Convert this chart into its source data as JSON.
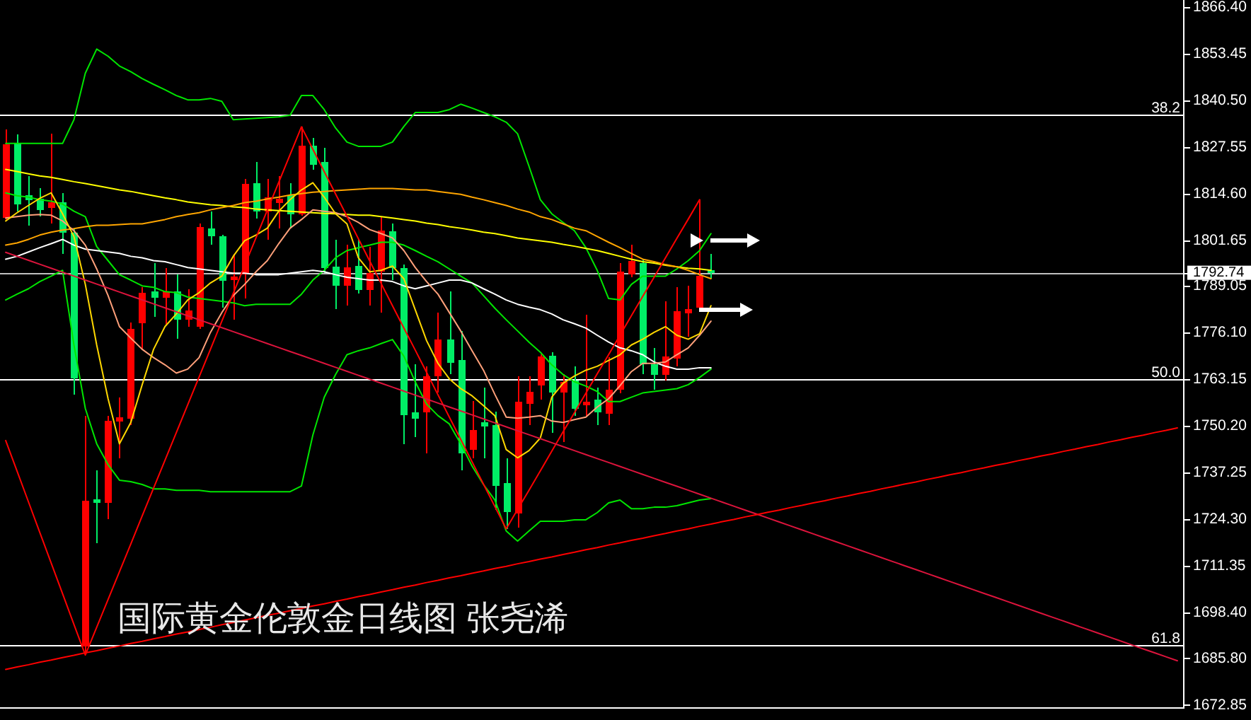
{
  "chart_data": {
    "type": "candlestick",
    "title": "国际黄金伦敦金日线图 张尧浠",
    "categories": [
      null,
      null,
      null,
      null,
      null,
      null,
      null,
      null,
      null,
      null,
      null,
      null,
      null,
      null,
      null,
      null,
      null,
      null,
      null,
      null,
      null,
      null,
      null,
      null,
      null,
      null,
      null,
      null,
      null,
      null,
      null,
      null,
      null,
      null,
      null,
      null,
      null,
      null,
      null,
      null,
      null,
      null,
      null,
      null,
      null,
      null,
      null,
      null,
      null,
      null,
      null,
      null,
      null,
      null,
      null,
      null,
      null,
      null,
      null,
      null,
      null,
      null,
      null,
      null,
      null,
      null,
      null,
      null,
      null,
      null,
      null,
      null,
      null,
      null,
      null,
      null,
      null,
      null,
      null,
      null,
      null,
      null,
      null,
      null,
      null,
      null,
      null,
      null,
      null,
      null,
      null,
      null,
      null,
      null,
      null,
      null,
      null,
      null,
      null,
      null,
      null,
      null,
      null,
      null
    ],
    "ohlc": [
      [
        1808.0,
        1832.5,
        1807.1,
        1828.3
      ],
      [
        1828.6,
        1831.2,
        1809.7,
        1811.7
      ],
      [
        1814.2,
        1819.5,
        1805.8,
        1812.9
      ],
      [
        1813.3,
        1816.2,
        1808.4,
        1810.1
      ],
      [
        1810.7,
        1831.3,
        1806.4,
        1812.3
      ],
      [
        1812.3,
        1814.9,
        1798.0,
        1803.8
      ],
      [
        1803.8,
        1805.1,
        1758.9,
        1763.4
      ],
      [
        1689.1,
        1753.0,
        1686.7,
        1729.5
      ],
      [
        1729.9,
        1738.0,
        1717.8,
        1728.9
      ],
      [
        1728.9,
        1753.0,
        1724.3,
        1751.7
      ],
      [
        1751.4,
        1758.2,
        1741.3,
        1752.6
      ],
      [
        1752.3,
        1779.0,
        1750.4,
        1777.1
      ],
      [
        1778.7,
        1788.8,
        1771.2,
        1787.1
      ],
      [
        1787.5,
        1795.4,
        1780.6,
        1785.8
      ],
      [
        1785.8,
        1794.1,
        1778.4,
        1787.5
      ],
      [
        1787.5,
        1792.3,
        1774.5,
        1779.7
      ],
      [
        1779.7,
        1788.2,
        1777.8,
        1782.3
      ],
      [
        1777.8,
        1806.4,
        1777.1,
        1805.5
      ],
      [
        1805.1,
        1809.7,
        1800.5,
        1802.8
      ],
      [
        1802.8,
        1803.2,
        1783.0,
        1790.5
      ],
      [
        1790.8,
        1798.0,
        1779.7,
        1791.7
      ],
      [
        1792.3,
        1818.8,
        1785.6,
        1817.3
      ],
      [
        1817.5,
        1823.4,
        1807.7,
        1809.7
      ],
      [
        1809.7,
        1818.8,
        1801.9,
        1813.6
      ],
      [
        1812.1,
        1819.6,
        1805.1,
        1813.3
      ],
      [
        1814.2,
        1817.5,
        1805.1,
        1809.0
      ],
      [
        1809.0,
        1833.2,
        1808.5,
        1827.9
      ],
      [
        1827.9,
        1830.2,
        1821.4,
        1822.7
      ],
      [
        1823.4,
        1827.3,
        1792.7,
        1794.1
      ],
      [
        1794.5,
        1801.9,
        1782.7,
        1789.2
      ],
      [
        1789.2,
        1800.5,
        1783.6,
        1794.3
      ],
      [
        1794.7,
        1801.9,
        1786.9,
        1787.9
      ],
      [
        1787.9,
        1799.9,
        1783.6,
        1792.7
      ],
      [
        1793.1,
        1808.4,
        1781.7,
        1804.5
      ],
      [
        1804.2,
        1806.4,
        1790.8,
        1794.1
      ],
      [
        1794.1,
        1795.0,
        1745.2,
        1753.2
      ],
      [
        1754.0,
        1767.3,
        1747.1,
        1752.3
      ],
      [
        1754.0,
        1766.7,
        1742.6,
        1764.1
      ],
      [
        1764.1,
        1781.7,
        1759.5,
        1774.2
      ],
      [
        1774.2,
        1787.5,
        1764.7,
        1767.7
      ],
      [
        1768.6,
        1776.5,
        1738.0,
        1742.6
      ],
      [
        1743.6,
        1757.1,
        1741.3,
        1749.1
      ],
      [
        1751.2,
        1760.8,
        1741.3,
        1750.1
      ],
      [
        1750.4,
        1754.3,
        1726.9,
        1733.7
      ],
      [
        1734.4,
        1741.3,
        1721.7,
        1726.3
      ],
      [
        1725.9,
        1764.1,
        1722.0,
        1756.9
      ],
      [
        1756.3,
        1764.1,
        1750.4,
        1759.8
      ],
      [
        1761.5,
        1770.2,
        1757.5,
        1769.6
      ],
      [
        1769.7,
        1770.7,
        1748.4,
        1759.5
      ],
      [
        1759.5,
        1764.7,
        1745.8,
        1762.4
      ],
      [
        1762.8,
        1766.7,
        1753.0,
        1754.9
      ],
      [
        1756.0,
        1781.0,
        1753.0,
        1756.9
      ],
      [
        1757.5,
        1760.8,
        1750.4,
        1754.0
      ],
      [
        1753.6,
        1769.3,
        1750.4,
        1760.2
      ],
      [
        1760.2,
        1795.4,
        1759.4,
        1793.1
      ],
      [
        1792.3,
        1800.5,
        1791.4,
        1796.0
      ],
      [
        1795.4,
        1796.6,
        1764.7,
        1767.3
      ],
      [
        1767.3,
        1771.9,
        1760.2,
        1764.4
      ],
      [
        1764.4,
        1784.9,
        1762.8,
        1769.6
      ],
      [
        1768.9,
        1788.8,
        1766.7,
        1782.1
      ],
      [
        1781.4,
        1789.1,
        1775.1,
        1782.7
      ],
      [
        1783.0,
        1813.0,
        1782.3,
        1791.8
      ],
      [
        1793.4,
        1798.0,
        1791.1,
        1792.74
      ],
      null,
      null,
      null,
      null,
      null,
      null,
      null,
      null,
      null,
      null,
      null,
      null,
      null,
      null,
      null,
      null,
      null,
      null,
      null,
      null,
      null,
      null,
      null,
      null,
      null,
      null,
      null,
      null,
      null,
      null,
      null,
      null,
      null,
      null,
      null,
      null,
      null,
      null,
      null,
      null,
      null
    ],
    "colors": [
      "#ff0000",
      "#00ee66",
      "#00ee66",
      "#00ee66",
      "#ff0000",
      "#00ee66",
      "#00ee66",
      "#ff0000",
      "#00ee66",
      "#ff0000",
      "#ff0000",
      "#ff0000",
      "#ff0000",
      "#00ee66",
      "#ff0000",
      "#00ee66",
      "#ff0000",
      "#ff0000",
      "#00ee66",
      "#00ee66",
      "#ff0000",
      "#ff0000",
      "#00ee66",
      "#ff0000",
      "#ff0000",
      "#00ee66",
      "#ff0000",
      "#00ee66",
      "#00ee66",
      "#00ee66",
      "#ff0000",
      "#00ee66",
      "#ff0000",
      "#ff0000",
      "#00ee66",
      "#00ee66",
      "#00ee66",
      "#ff0000",
      "#ff0000",
      "#00ee66",
      "#00ee66",
      "#ff0000",
      "#00ee66",
      "#00ee66",
      "#00ee66",
      "#ff0000",
      "#ff0000",
      "#ff0000",
      "#00ee66",
      "#ff0000",
      "#00ee66",
      "#ff0000",
      "#00ee66",
      "#ff0000",
      "#ff0000",
      "#ff0000",
      "#00ee66",
      "#00ee66",
      "#ff0000",
      "#ff0000",
      "#ff0000",
      "#ff0000",
      "#00ee66",
      null,
      null,
      null,
      null,
      null,
      null,
      null,
      null,
      null,
      null,
      null,
      null,
      null,
      null,
      null,
      null,
      null,
      null,
      null,
      null,
      null,
      null,
      null,
      null,
      null,
      null,
      null,
      null,
      null,
      null,
      null,
      null,
      null,
      null,
      null,
      null,
      null,
      null,
      null,
      null,
      null
    ],
    "series": [
      {
        "type": "line",
        "color": "#00e600",
        "values": [
          1828.6,
          1828.6,
          1828.6,
          1828.6,
          1828.6,
          1828.6,
          1835.2,
          1848.1,
          1854.8,
          1852.8,
          1850.1,
          1848.5,
          1846.6,
          1845.0,
          1843.5,
          1841.9,
          1840.7,
          1840.7,
          1841.1,
          1840.3,
          1835.2,
          1835.4,
          1835.6,
          1835.8,
          1836.0,
          1836.4,
          1841.9,
          1841.9,
          1838.0,
          1832.9,
          1829.0,
          1827.8,
          1827.8,
          1827.8,
          1829.0,
          1833.3,
          1837.2,
          1837.2,
          1837.2,
          1838.0,
          1839.5,
          1838.4,
          1837.2,
          1836.0,
          1834.5,
          1831.3,
          1822.3,
          1813.0,
          1809.1,
          1806.7,
          1804.4,
          1799.7,
          1793.4,
          1785.6,
          1785.2,
          1789.5,
          1791.8,
          1791.8,
          1791.8,
          1793.8,
          1796.1,
          1798.9,
          1803.6,
          null,
          null,
          null,
          null,
          null,
          null,
          null,
          null,
          null,
          null,
          null,
          null,
          null,
          null,
          null,
          null,
          null,
          null,
          null,
          null,
          null,
          null,
          null,
          null,
          null,
          null,
          null,
          null,
          null,
          null,
          null,
          null,
          null,
          null,
          null,
          null,
          null,
          null,
          null,
          null,
          null
        ]
      },
      {
        "type": "line",
        "color": "#00e600",
        "values": [
          1785.2,
          1786.8,
          1788.3,
          1790.3,
          1791.8,
          1793.4,
          1772.7,
          1755.1,
          1745.3,
          1739.5,
          1735.2,
          1734.8,
          1734.0,
          1732.8,
          1732.8,
          1732.4,
          1732.4,
          1732.4,
          1732.0,
          1732.0,
          1732.0,
          1732.0,
          1732.0,
          1732.0,
          1732.0,
          1732.0,
          1733.6,
          1747.7,
          1758.2,
          1764.5,
          1770.0,
          1771.1,
          1771.9,
          1773.1,
          1774.2,
          1769.6,
          1762.5,
          1756.3,
          1753.1,
          1750.8,
          1745.3,
          1739.1,
          1734.0,
          1729.7,
          1721.1,
          1718.3,
          1721.1,
          1723.8,
          1723.8,
          1723.8,
          1724.2,
          1724.2,
          1726.2,
          1728.9,
          1729.7,
          1727.3,
          1727.3,
          1727.7,
          1727.7,
          1728.1,
          1728.9,
          1729.7,
          1730.1,
          null,
          null,
          null,
          null,
          null,
          null,
          null,
          null,
          null,
          null,
          null,
          null,
          null,
          null,
          null,
          null,
          null,
          null,
          null,
          null,
          null,
          null,
          null,
          null,
          null,
          null,
          null,
          null,
          null,
          null,
          null,
          null,
          null,
          null,
          null,
          null,
          null,
          null,
          null,
          null,
          null
        ]
      },
      {
        "type": "line",
        "color": "#00e600",
        "values": [
          1814.9,
          1814.1,
          1813.7,
          1813.0,
          1812.6,
          1811.8,
          1809.8,
          1808.3,
          1800.0,
          1796.1,
          1792.2,
          1790.7,
          1789.1,
          1788.7,
          1787.5,
          1787.2,
          1786.0,
          1785.6,
          1785.2,
          1784.8,
          1784.4,
          1783.6,
          1784.0,
          1784.0,
          1784.0,
          1784.0,
          1786.8,
          1790.7,
          1793.4,
          1796.9,
          1798.9,
          1799.7,
          1800.4,
          1801.2,
          1801.2,
          1800.4,
          1798.9,
          1797.3,
          1795.8,
          1793.8,
          1791.8,
          1789.9,
          1786.4,
          1782.9,
          1779.7,
          1776.6,
          1773.5,
          1770.7,
          1767.2,
          1764.5,
          1762.5,
          1761.3,
          1759.8,
          1757.0,
          1757.0,
          1758.2,
          1759.4,
          1759.8,
          1760.2,
          1760.6,
          1761.7,
          1763.7,
          1766.0,
          null,
          null,
          null,
          null,
          null,
          null,
          null,
          null,
          null,
          null,
          null,
          null,
          null,
          null,
          null,
          null,
          null,
          null,
          null,
          null,
          null,
          null,
          null,
          null,
          null,
          null,
          null,
          null,
          null,
          null,
          null,
          null,
          null,
          null,
          null,
          null,
          null,
          null,
          null,
          null,
          null
        ]
      },
      {
        "type": "line",
        "color": "#ffffff",
        "values": [
          1796.5,
          1797.3,
          1798.5,
          1799.7,
          1800.8,
          1802.0,
          1800.4,
          1799.3,
          1798.9,
          1798.5,
          1798.1,
          1797.3,
          1796.9,
          1796.1,
          1795.8,
          1795.0,
          1794.2,
          1793.8,
          1793.4,
          1793.0,
          1792.6,
          1792.6,
          1792.2,
          1792.2,
          1792.2,
          1792.6,
          1793.0,
          1793.4,
          1793.0,
          1792.2,
          1791.5,
          1791.1,
          1790.7,
          1790.7,
          1790.3,
          1789.1,
          1788.3,
          1789.1,
          1789.9,
          1790.7,
          1790.7,
          1789.9,
          1788.3,
          1786.8,
          1785.2,
          1784.0,
          1783.2,
          1782.5,
          1781.3,
          1779.7,
          1778.6,
          1777.4,
          1775.4,
          1773.5,
          1771.9,
          1771.1,
          1770.0,
          1768.0,
          1766.8,
          1766.0,
          1766.0,
          1766.4,
          1766.4,
          null,
          null,
          null,
          null,
          null,
          null,
          null,
          null,
          null,
          null,
          null,
          null,
          null,
          null,
          null,
          null,
          null,
          null,
          null,
          null,
          null,
          null,
          null,
          null,
          null,
          null,
          null,
          null,
          null,
          null,
          null,
          null,
          null,
          null,
          null,
          null,
          null,
          null,
          null,
          null,
          null
        ]
      },
      {
        "type": "line",
        "color": "#ffff00",
        "values": [
          1821.4,
          1820.8,
          1820.2,
          1819.6,
          1819.2,
          1818.6,
          1818.0,
          1817.5,
          1816.9,
          1816.3,
          1815.7,
          1815.3,
          1814.7,
          1814.1,
          1813.5,
          1813.0,
          1812.4,
          1812.0,
          1811.6,
          1811.4,
          1811.0,
          1810.8,
          1810.4,
          1810.2,
          1810.0,
          1809.8,
          1809.6,
          1809.4,
          1809.2,
          1809.1,
          1808.9,
          1808.7,
          1808.7,
          1808.3,
          1807.9,
          1807.5,
          1807.1,
          1806.5,
          1806.1,
          1805.5,
          1805.1,
          1804.6,
          1804.0,
          1803.6,
          1803.0,
          1802.4,
          1802.0,
          1801.6,
          1801.2,
          1800.6,
          1800.1,
          1799.5,
          1798.9,
          1798.1,
          1797.3,
          1796.5,
          1795.8,
          1795.4,
          1794.8,
          1794.4,
          1794.0,
          1793.8,
          1793.4,
          null,
          null,
          null,
          null,
          null,
          null,
          null,
          null,
          null,
          null,
          null,
          null,
          null,
          null,
          null,
          null,
          null,
          null,
          null,
          null,
          null,
          null,
          null,
          null,
          null,
          null,
          null,
          null,
          null,
          null,
          null,
          null,
          null,
          null,
          null,
          null,
          null,
          null,
          null,
          null,
          null
        ]
      },
      {
        "type": "line",
        "color": "#ffa500",
        "values": [
          1800.4,
          1801.0,
          1802.0,
          1803.2,
          1804.0,
          1804.6,
          1805.0,
          1805.5,
          1805.9,
          1805.9,
          1806.1,
          1806.3,
          1806.3,
          1806.9,
          1807.5,
          1808.3,
          1808.9,
          1809.4,
          1810.2,
          1810.8,
          1811.4,
          1812.2,
          1812.6,
          1813.2,
          1813.7,
          1814.3,
          1814.7,
          1815.1,
          1815.3,
          1815.5,
          1815.7,
          1815.9,
          1816.1,
          1816.1,
          1816.1,
          1815.9,
          1815.7,
          1815.7,
          1815.3,
          1814.9,
          1814.5,
          1813.7,
          1813.0,
          1812.2,
          1811.4,
          1810.4,
          1809.6,
          1808.3,
          1807.5,
          1806.3,
          1805.1,
          1804.4,
          1802.8,
          1801.2,
          1799.7,
          1798.1,
          1796.5,
          1795.8,
          1795.0,
          1794.4,
          1793.4,
          1792.2,
          1791.1,
          null,
          null,
          null,
          null,
          null,
          null,
          null,
          null,
          null,
          null,
          null,
          null,
          null,
          null,
          null,
          null,
          null,
          null,
          null,
          null,
          null,
          null,
          null,
          null,
          null,
          null,
          null,
          null,
          null,
          null,
          null,
          null,
          null,
          null,
          null,
          null,
          null,
          null,
          null,
          null,
          null
        ]
      },
      {
        "type": "line",
        "color": "#ffa07a",
        "values": [
          1807.9,
          1808.3,
          1808.7,
          1808.9,
          1808.7,
          1807.1,
          1804.4,
          1800.4,
          1793.8,
          1786.4,
          1777.8,
          1774.6,
          1771.5,
          1769.2,
          1767.2,
          1764.9,
          1766.0,
          1769.2,
          1776.2,
          1781.7,
          1786.4,
          1789.5,
          1793.0,
          1796.1,
          1800.8,
          1805.1,
          1807.5,
          1810.2,
          1809.8,
          1809.4,
          1808.3,
          1806.7,
          1804.7,
          1803.6,
          1802.4,
          1798.9,
          1794.2,
          1790.3,
          1786.8,
          1781.7,
          1776.6,
          1771.1,
          1765.7,
          1759.0,
          1752.7,
          1752.4,
          1752.7,
          1753.1,
          1751.6,
          1751.2,
          1752.0,
          1752.7,
          1755.5,
          1757.8,
          1761.4,
          1765.3,
          1767.6,
          1767.6,
          1768.0,
          1770.0,
          1771.9,
          1775.4,
          1779.3,
          null,
          null,
          null,
          null,
          null,
          null,
          null,
          null,
          null,
          null,
          null,
          null,
          null,
          null,
          null,
          null,
          null,
          null,
          null,
          null,
          null,
          null,
          null,
          null,
          null,
          null,
          null,
          null,
          null,
          null,
          null,
          null,
          null,
          null,
          null,
          null,
          null,
          null,
          null,
          null,
          null
        ]
      },
      {
        "type": "line",
        "color": "#ffd700",
        "values": [
          1807.1,
          1809.4,
          1811.4,
          1813.4,
          1814.9,
          1809.1,
          1802.8,
          1789.5,
          1772.7,
          1757.8,
          1745.3,
          1751.2,
          1761.7,
          1771.5,
          1777.8,
          1781.3,
          1785.2,
          1787.2,
          1789.9,
          1791.8,
          1797.3,
          1801.6,
          1803.2,
          1805.1,
          1809.8,
          1813.0,
          1815.7,
          1817.7,
          1813.7,
          1809.1,
          1806.3,
          1796.9,
          1793.0,
          1793.4,
          1794.6,
          1791.1,
          1782.5,
          1773.9,
          1767.6,
          1763.3,
          1760.6,
          1758.6,
          1755.9,
          1753.1,
          1743.7,
          1741.4,
          1743.4,
          1746.9,
          1758.2,
          1762.1,
          1764.1,
          1765.7,
          1766.8,
          1768.4,
          1770.0,
          1772.7,
          1774.3,
          1776.2,
          1777.8,
          1775.4,
          1774.3,
          1775.8,
          1783.6,
          null,
          null,
          null,
          null,
          null,
          null,
          null,
          null,
          null,
          null,
          null,
          null,
          null,
          null,
          null,
          null,
          null,
          null,
          null,
          null,
          null,
          null,
          null,
          null,
          null,
          null,
          null,
          null,
          null,
          null,
          null,
          null,
          null,
          null,
          null,
          null,
          null,
          null,
          null,
          null,
          null
        ]
      },
      {
        "type": "line",
        "color": "#ff0000",
        "values": [
          1746.2,
          1737.7,
          1729.2,
          1720.7,
          1712.2,
          1703.7,
          1695.2,
          1686.7,
          1694.4,
          1702.1,
          1709.8,
          1717.5,
          1725.3,
          1733.0,
          1740.7,
          1748.4,
          1756.1,
          1763.8,
          1771.5,
          1779.3,
          1787.0,
          1794.7,
          1802.4,
          1810.1,
          1817.8,
          1825.5,
          1833.2,
          1827.0,
          1820.8,
          1814.6,
          1808.4,
          1802.2,
          1796.0,
          1789.8,
          1783.6,
          1777.4,
          1771.3,
          1765.1,
          1758.9,
          1752.7,
          1746.5,
          1740.3,
          1734.1,
          1727.9,
          1721.7,
          1727.1,
          1732.4,
          1737.8,
          1743.2,
          1748.6,
          1753.9,
          1759.3,
          1764.7,
          1770.0,
          1775.4,
          1780.8,
          1786.2,
          1791.5,
          1796.9,
          1802.3,
          1807.6,
          1813.0,
          null,
          null,
          null,
          null,
          null,
          null,
          null,
          null,
          null,
          null,
          null,
          null,
          null,
          null,
          null,
          null,
          null,
          null,
          null,
          null,
          null,
          null,
          null,
          null,
          null,
          null,
          null,
          null,
          null,
          null,
          null,
          null,
          null,
          null,
          null,
          null,
          null,
          null,
          null,
          null,
          null,
          null
        ]
      },
      {
        "type": "line",
        "color": "#dc143c",
        "values": [
          1798.4,
          1797.3,
          1796.2,
          1795.1,
          1794.0,
          1792.9,
          1791.8,
          1790.7,
          1789.6,
          1788.5,
          1787.4,
          1786.3,
          1785.2,
          1784.1,
          1783.0,
          1781.9,
          1780.8,
          1779.7,
          1778.6,
          1777.5,
          1776.4,
          1775.3,
          1774.2,
          1773.1,
          1772.0,
          1770.9,
          1769.8,
          1768.7,
          1767.6,
          1766.5,
          1765.4,
          1764.3,
          1763.2,
          1762.1,
          1761.0,
          1759.9,
          1758.8,
          1757.7,
          1756.6,
          1755.5,
          1754.4,
          1753.3,
          1752.2,
          1751.1,
          1750.0,
          1748.9,
          1747.8,
          1746.7,
          1745.6,
          1744.5,
          1743.4,
          1742.3,
          1741.2,
          1740.1,
          1739.0,
          1737.9,
          1736.8,
          1735.7,
          1734.6,
          1733.5,
          1732.4,
          1731.3,
          1730.2,
          1729.1,
          1728.0,
          1726.9,
          1725.8,
          1724.7,
          1723.6,
          1722.5,
          1721.4,
          1720.3,
          1719.2,
          1718.1,
          1717.0,
          1715.9,
          1714.8,
          1713.7,
          1712.6,
          1711.5,
          1710.4,
          1709.3,
          1708.2,
          1707.1,
          1706.0,
          1704.9,
          1703.8,
          1702.7,
          1701.6,
          1700.5,
          1699.4,
          1698.3,
          1697.2,
          1696.1,
          1695.0,
          1693.9,
          1692.8,
          1691.7,
          1690.6,
          1689.5,
          1688.4,
          1687.3,
          1686.2,
          1685.1
        ]
      },
      {
        "type": "line",
        "color": "#ff0000",
        "values": [
          1682.7,
          1683.4,
          1684.0,
          1684.7,
          1685.3,
          1686.0,
          1686.6,
          1687.3,
          1687.9,
          1688.6,
          1689.2,
          1689.9,
          1690.5,
          1691.2,
          1691.8,
          1692.5,
          1693.1,
          1693.8,
          1694.4,
          1695.1,
          1695.7,
          1696.4,
          1697.0,
          1697.7,
          1698.3,
          1699.0,
          1699.6,
          1700.3,
          1700.9,
          1701.6,
          1702.2,
          1702.9,
          1703.5,
          1704.2,
          1704.8,
          1705.5,
          1706.1,
          1706.8,
          1707.4,
          1708.1,
          1708.7,
          1709.4,
          1710.0,
          1710.7,
          1711.3,
          1712.0,
          1712.6,
          1713.3,
          1713.9,
          1714.6,
          1715.2,
          1715.9,
          1716.5,
          1717.2,
          1717.8,
          1718.5,
          1719.1,
          1719.8,
          1720.4,
          1721.1,
          1721.7,
          1722.4,
          1723.0,
          1723.7,
          1724.3,
          1725.0,
          1725.6,
          1726.3,
          1726.9,
          1727.6,
          1728.2,
          1728.9,
          1729.5,
          1730.2,
          1730.8,
          1731.5,
          1732.1,
          1732.8,
          1733.4,
          1734.1,
          1734.7,
          1735.4,
          1736.0,
          1736.7,
          1737.3,
          1738.0,
          1738.6,
          1739.3,
          1739.9,
          1740.6,
          1741.2,
          1741.9,
          1742.5,
          1743.2,
          1743.8,
          1744.5,
          1745.1,
          1745.8,
          1746.4,
          1747.1,
          1747.7,
          1748.4,
          1749.0,
          1749.7
        ]
      }
    ],
    "ylim": [
      1672.2,
      1868.4
    ],
    "yticks": [
      {
        "value": 1866.4,
        "label": "1866.40"
      },
      1853.45,
      {
        "value": 1840.5,
        "label": "1840.50"
      },
      1827.55,
      {
        "value": 1814.6,
        "label": "1814.60"
      },
      1801.65,
      1792.74,
      1789.05,
      {
        "value": 1776.1,
        "label": "1776.10"
      },
      1763.15,
      {
        "value": 1750.2,
        "label": "1750.20"
      },
      1737.25,
      {
        "value": 1724.3,
        "label": "1724.30"
      },
      1711.35,
      {
        "value": 1698.4,
        "label": "1698.40"
      },
      {
        "value": 1685.8,
        "label": "1685.80"
      },
      1672.85
    ],
    "y2lim": [
      64.6,
      33.1
    ],
    "y2ticks": [
      38.2,
      {
        "value": 50,
        "label": "50.0"
      },
      61.8
    ],
    "tick_labels": "y",
    "ref_lines": [
      {
        "axis": "y2",
        "value": 38.2,
        "color": "#ffffff"
      },
      {
        "axis": "y2",
        "value": 50,
        "color": "#ffffff"
      },
      {
        "axis": "y2",
        "value": 61.8,
        "color": "#ffffff"
      },
      {
        "axis": "y",
        "value": 1792.74,
        "color": "#c0c0c0"
      }
    ]
  }
}
